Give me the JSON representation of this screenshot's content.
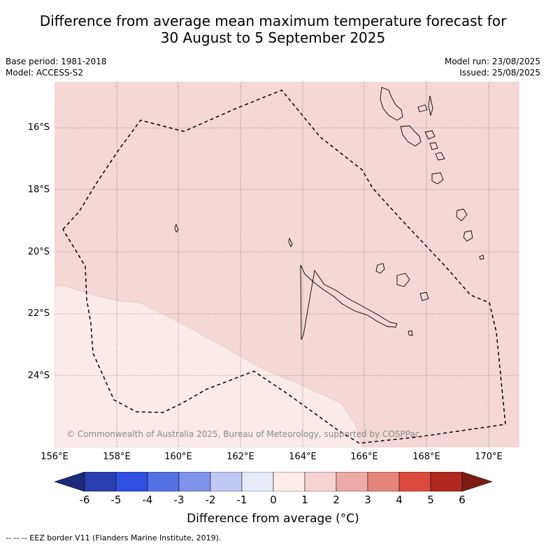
{
  "title_line1": "Difference from average mean maximum temperature forecast for",
  "title_line2": "30 August to 5 September 2025",
  "base_period": "Base period: 1981-2018",
  "model": "Model: ACCESS-S2",
  "model_run": "Model run: 23/08/2025",
  "issued": "Issued: 25/08/2025",
  "lat_labels": [
    "16°S",
    "18°S",
    "20°S",
    "22°S",
    "24°S"
  ],
  "lon_labels": [
    "156°E",
    "158°E",
    "160°E",
    "162°E",
    "164°E",
    "166°E",
    "168°E",
    "170°E"
  ],
  "credit": "© Commonwealth of Australia 2025, Bureau of Meteorology, supported by COSPPac",
  "colorbar": {
    "ticks": [
      "-6",
      "-5",
      "-4",
      "-3",
      "-2",
      "-1",
      "0",
      "1",
      "2",
      "3",
      "4",
      "5",
      "6"
    ],
    "colors": [
      "#1b2a7a",
      "#2a3fb0",
      "#2f4fe0",
      "#5470e4",
      "#8093ea",
      "#c0c8f4",
      "#e8ecfa",
      "#fcecea",
      "#f6d3d2",
      "#eeaaa6",
      "#e6847c",
      "#dc4a3e",
      "#b02820",
      "#7c1a14"
    ],
    "title": "Difference from average (°C)"
  },
  "legend_text": "--  --  -- EEZ border V11 (Flanders Marine Institute, 2019).",
  "map": {
    "lon_range": [
      156.0,
      171.0
    ],
    "lat_range": [
      -26.3,
      -14.45
    ],
    "fill_main": "#f5d7d5",
    "fill_low": "#fbeaea",
    "grid": true
  }
}
